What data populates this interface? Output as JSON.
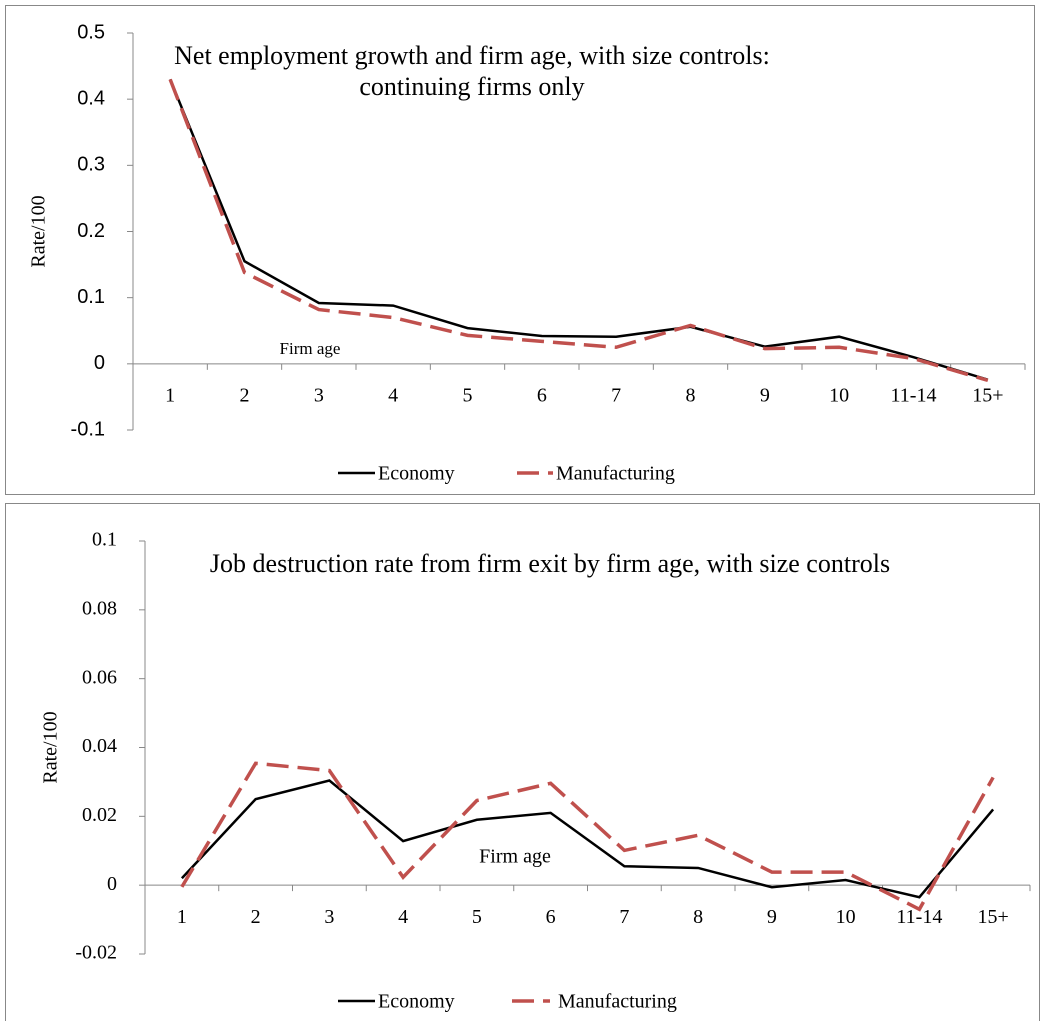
{
  "chart_data": [
    {
      "type": "line",
      "title": "Net employment growth and firm age, with size controls: continuing firms only",
      "xlabel": "Firm age",
      "ylabel": "Rate/100",
      "categories": [
        "1",
        "2",
        "3",
        "4",
        "5",
        "6",
        "7",
        "8",
        "9",
        "10",
        "11-14",
        "15+"
      ],
      "series": [
        {
          "name": "Economy",
          "color": "#000000",
          "style": "solid",
          "values": [
            0.43,
            0.155,
            0.092,
            0.088,
            0.054,
            0.042,
            0.041,
            0.056,
            0.026,
            0.041,
            0.01,
            -0.024
          ]
        },
        {
          "name": "Manufacturing",
          "color": "#c0504d",
          "style": "dashed",
          "values": [
            0.43,
            0.138,
            0.082,
            0.07,
            0.043,
            0.034,
            0.025,
            0.058,
            0.023,
            0.025,
            0.008,
            -0.025
          ]
        }
      ],
      "ylim": [
        -0.1,
        0.5
      ],
      "yticks": [
        -0.1,
        0,
        0.1,
        0.2,
        0.3,
        0.4,
        0.5
      ],
      "grid": false,
      "legend": "bottom"
    },
    {
      "type": "line",
      "title": "Job destruction rate from firm exit by firm age, with size controls",
      "xlabel": "Firm age",
      "ylabel": "Rate/100",
      "categories": [
        "1",
        "2",
        "3",
        "4",
        "5",
        "6",
        "7",
        "8",
        "9",
        "10",
        "11-14",
        "15+"
      ],
      "series": [
        {
          "name": "Economy",
          "color": "#000000",
          "style": "solid",
          "values": [
            0.002,
            0.025,
            0.0304,
            0.0128,
            0.019,
            0.021,
            0.0055,
            0.005,
            -0.0006,
            0.0015,
            -0.0035,
            0.022
          ]
        },
        {
          "name": "Manufacturing",
          "color": "#c0504d",
          "style": "dashed",
          "values": [
            -0.0005,
            0.0354,
            0.0333,
            0.0023,
            0.0246,
            0.0296,
            0.0101,
            0.0145,
            0.0038,
            0.0038,
            -0.007,
            0.0313
          ]
        }
      ],
      "ylim": [
        -0.02,
        0.1
      ],
      "yticks": [
        -0.02,
        0,
        0.02,
        0.04,
        0.06,
        0.08,
        0.1
      ],
      "grid": false,
      "legend": "bottom"
    }
  ]
}
